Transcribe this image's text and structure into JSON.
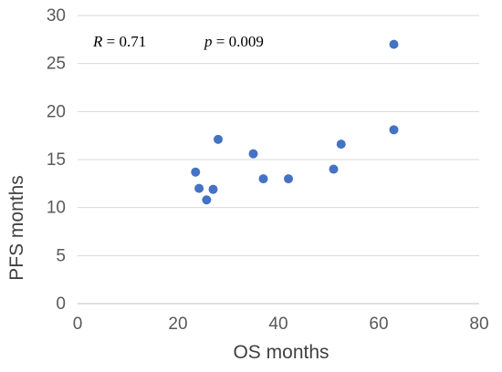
{
  "chart_data": {
    "type": "scatter",
    "xlabel": "OS months",
    "ylabel": "PFS months",
    "xlim": [
      0,
      80
    ],
    "ylim": [
      0,
      30
    ],
    "xticks": [
      0,
      20,
      40,
      60,
      80
    ],
    "yticks": [
      0,
      5,
      10,
      15,
      20,
      25,
      30
    ],
    "grid": "horizontal",
    "legend": "none",
    "marker_color": "#4472C4",
    "annotation": {
      "r_symbol": "R",
      "r_value": " = 0.71",
      "p_symbol": "p",
      "p_value": " = 0.009"
    },
    "points": [
      {
        "x": 23.5,
        "y": 13.7
      },
      {
        "x": 24.2,
        "y": 12.0
      },
      {
        "x": 25.7,
        "y": 10.8
      },
      {
        "x": 27.0,
        "y": 11.9
      },
      {
        "x": 28.0,
        "y": 17.1
      },
      {
        "x": 35.0,
        "y": 15.6
      },
      {
        "x": 37.0,
        "y": 13.0
      },
      {
        "x": 42.0,
        "y": 13.0
      },
      {
        "x": 51.0,
        "y": 14.0
      },
      {
        "x": 52.5,
        "y": 16.6
      },
      {
        "x": 63.0,
        "y": 27.0
      },
      {
        "x": 63.0,
        "y": 18.1
      }
    ]
  }
}
